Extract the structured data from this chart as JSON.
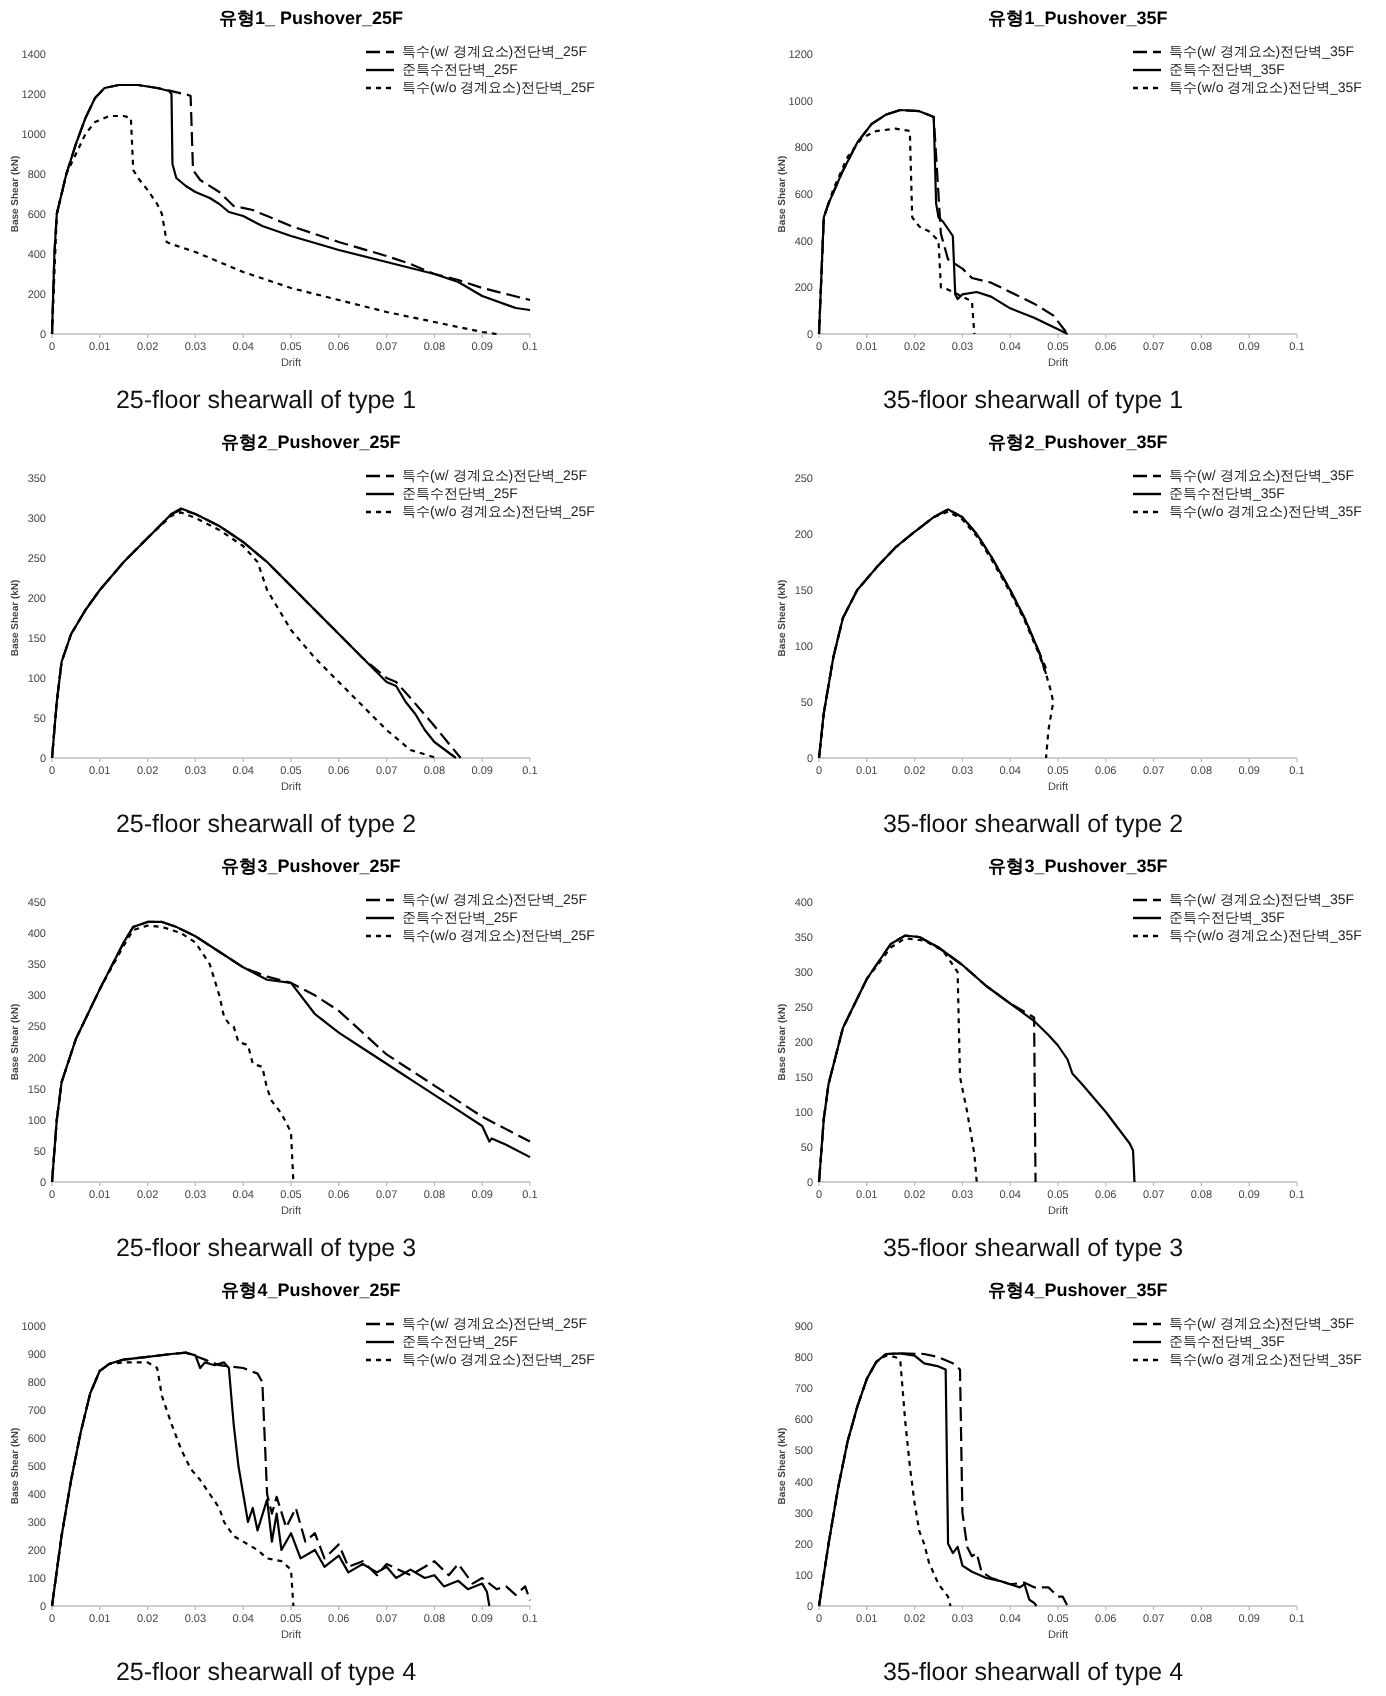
{
  "chart_data": [
    {
      "type": "line",
      "title": "유형1_ Pushover_25F",
      "xlabel": "Drift",
      "ylabel": "Base Shear (kN)",
      "annotations": [
        "25-floor shearwall of type 1"
      ],
      "legend": "top right",
      "xlim": [
        0,
        0.1
      ],
      "xticks": [
        0,
        0.01,
        0.02,
        0.03,
        0.04,
        0.05,
        0.06,
        0.07,
        0.08,
        0.09,
        0.1
      ],
      "ylim": [
        0,
        1400
      ],
      "yticks": [
        0,
        200,
        400,
        600,
        800,
        1000,
        1200,
        1400
      ],
      "series": [
        {
          "name": "특수(w/ 경계요소)전단벽_25F",
          "color": "#000000",
          "line_style": "dashed",
          "x": [
            0,
            0.0005,
            0.001,
            0.003,
            0.005,
            0.007,
            0.009,
            0.011,
            0.014,
            0.018,
            0.022,
            0.024,
            0.0285,
            0.029,
            0.0295,
            0.031,
            0.035,
            0.038,
            0.042,
            0.045,
            0.05,
            0.06,
            0.07,
            0.075,
            0.08,
            0.085,
            0.09,
            0.1
          ],
          "values": [
            0,
            400,
            600,
            800,
            950,
            1080,
            1180,
            1230,
            1245,
            1245,
            1230,
            1220,
            1195,
            1190,
            820,
            770,
            710,
            640,
            620,
            590,
            540,
            460,
            390,
            350,
            300,
            270,
            230,
            170
          ]
        },
        {
          "name": "준특수전단벽_25F",
          "color": "#000000",
          "line_style": "solid",
          "x": [
            0,
            0.0005,
            0.001,
            0.003,
            0.005,
            0.007,
            0.009,
            0.011,
            0.014,
            0.018,
            0.022,
            0.0245,
            0.025,
            0.0252,
            0.026,
            0.028,
            0.03,
            0.033,
            0.035,
            0.037,
            0.04,
            0.044,
            0.05,
            0.06,
            0.07,
            0.08,
            0.085,
            0.09,
            0.097,
            0.1
          ],
          "values": [
            0,
            400,
            600,
            800,
            950,
            1080,
            1180,
            1230,
            1245,
            1245,
            1230,
            1215,
            1200,
            850,
            780,
            740,
            710,
            680,
            650,
            610,
            590,
            540,
            490,
            420,
            360,
            300,
            260,
            190,
            130,
            120
          ]
        },
        {
          "name": "특수(w/o 경계요소)전단벽_25F",
          "color": "#000000",
          "line_style": "dotted",
          "x": [
            0,
            0.001,
            0.003,
            0.005,
            0.007,
            0.009,
            0.012,
            0.015,
            0.0165,
            0.017,
            0.018,
            0.02,
            0.022,
            0.023,
            0.024,
            0.025,
            0.03,
            0.04,
            0.05,
            0.06,
            0.07,
            0.08,
            0.09,
            0.093
          ],
          "values": [
            0,
            600,
            800,
            900,
            1000,
            1060,
            1090,
            1090,
            1080,
            820,
            780,
            720,
            650,
            600,
            460,
            450,
            410,
            310,
            230,
            170,
            110,
            60,
            10,
            0
          ]
        }
      ]
    },
    {
      "type": "line",
      "title": "유형1_Pushover_35F",
      "xlabel": "Drift",
      "ylabel": "Base Shear (kN)",
      "annotations": [
        "35-floor shearwall of type 1"
      ],
      "legend": "top right",
      "xlim": [
        0,
        0.1
      ],
      "xticks": [
        0,
        0.01,
        0.02,
        0.03,
        0.04,
        0.05,
        0.06,
        0.07,
        0.08,
        0.09,
        0.1
      ],
      "ylim": [
        0,
        1200
      ],
      "yticks": [
        0,
        200,
        400,
        600,
        800,
        1000,
        1200
      ],
      "series": [
        {
          "name": "특수(w/ 경계요소)전단벽_35F",
          "color": "#000000",
          "line_style": "dashed",
          "x": [
            0,
            0.001,
            0.002,
            0.005,
            0.008,
            0.011,
            0.014,
            0.017,
            0.021,
            0.024,
            0.0255,
            0.027,
            0.03,
            0.032,
            0.036,
            0.04,
            0.045,
            0.049,
            0.052
          ],
          "values": [
            0,
            500,
            560,
            700,
            820,
            900,
            940,
            960,
            955,
            930,
            430,
            320,
            280,
            240,
            220,
            180,
            130,
            80,
            0
          ]
        },
        {
          "name": "준특수전단벽_35F",
          "color": "#000000",
          "line_style": "solid",
          "x": [
            0,
            0.001,
            0.002,
            0.005,
            0.008,
            0.011,
            0.014,
            0.017,
            0.021,
            0.024,
            0.0245,
            0.025,
            0.026,
            0.027,
            0.028,
            0.0285,
            0.029,
            0.03,
            0.033,
            0.036,
            0.04,
            0.045,
            0.05,
            0.052
          ],
          "values": [
            0,
            500,
            560,
            700,
            820,
            900,
            940,
            960,
            955,
            930,
            560,
            500,
            480,
            450,
            420,
            170,
            150,
            170,
            180,
            160,
            110,
            70,
            20,
            0
          ]
        },
        {
          "name": "특수(w/o 경계요소)전단벽_35F",
          "color": "#000000",
          "line_style": "dotted",
          "x": [
            0,
            0.001,
            0.003,
            0.006,
            0.009,
            0.012,
            0.016,
            0.019,
            0.0195,
            0.021,
            0.023,
            0.025,
            0.0255,
            0.027,
            0.029,
            0.031,
            0.032,
            0.0325
          ],
          "values": [
            0,
            500,
            620,
            760,
            840,
            870,
            880,
            870,
            500,
            460,
            440,
            400,
            200,
            190,
            170,
            150,
            140,
            0
          ]
        }
      ]
    },
    {
      "type": "line",
      "title": "유형2_Pushover_25F",
      "xlabel": "Drift",
      "ylabel": "Base Shear (kN)",
      "annotations": [
        "25-floor shearwall of type 2"
      ],
      "legend": "top right",
      "xlim": [
        0,
        0.1
      ],
      "xticks": [
        0,
        0.01,
        0.02,
        0.03,
        0.04,
        0.05,
        0.06,
        0.07,
        0.08,
        0.09,
        0.1
      ],
      "ylim": [
        0,
        350
      ],
      "yticks": [
        0,
        50,
        100,
        150,
        200,
        250,
        300,
        350
      ],
      "series": [
        {
          "name": "특수(w/ 경계요소)전단벽_25F",
          "color": "#000000",
          "line_style": "dashed",
          "x": [
            0,
            0.001,
            0.002,
            0.004,
            0.007,
            0.01,
            0.015,
            0.02,
            0.025,
            0.027,
            0.03,
            0.035,
            0.04,
            0.045,
            0.05,
            0.055,
            0.06,
            0.065,
            0.07,
            0.072,
            0.075,
            0.08,
            0.0855
          ],
          "values": [
            0,
            70,
            120,
            155,
            185,
            210,
            245,
            275,
            305,
            310,
            305,
            290,
            270,
            245,
            215,
            185,
            155,
            125,
            100,
            95,
            75,
            40,
            0
          ]
        },
        {
          "name": "준특수전단벽_25F",
          "color": "#000000",
          "line_style": "solid",
          "x": [
            0,
            0.001,
            0.002,
            0.004,
            0.007,
            0.01,
            0.015,
            0.02,
            0.025,
            0.027,
            0.03,
            0.035,
            0.04,
            0.045,
            0.05,
            0.055,
            0.06,
            0.065,
            0.07,
            0.072,
            0.074,
            0.076,
            0.078,
            0.08,
            0.0845
          ],
          "values": [
            0,
            70,
            120,
            155,
            185,
            210,
            245,
            275,
            305,
            312,
            305,
            290,
            270,
            245,
            215,
            185,
            155,
            125,
            95,
            90,
            70,
            55,
            35,
            20,
            0
          ]
        },
        {
          "name": "특수(w/o 경계요소)전단벽_25F",
          "color": "#000000",
          "line_style": "dotted",
          "x": [
            0,
            0.001,
            0.002,
            0.004,
            0.007,
            0.01,
            0.015,
            0.02,
            0.025,
            0.027,
            0.03,
            0.035,
            0.04,
            0.043,
            0.045,
            0.047,
            0.05,
            0.055,
            0.06,
            0.065,
            0.07,
            0.075,
            0.0805
          ],
          "values": [
            0,
            70,
            120,
            155,
            185,
            210,
            245,
            275,
            303,
            307,
            300,
            285,
            265,
            245,
            210,
            190,
            160,
            125,
            95,
            65,
            35,
            10,
            0
          ]
        }
      ]
    },
    {
      "type": "line",
      "title": "유형2_Pushover_35F",
      "xlabel": "Drift",
      "ylabel": "Base Shear (kN)",
      "annotations": [
        "35-floor shearwall of type 2"
      ],
      "legend": "top right",
      "xlim": [
        0,
        0.1
      ],
      "xticks": [
        0,
        0.01,
        0.02,
        0.03,
        0.04,
        0.05,
        0.06,
        0.07,
        0.08,
        0.09,
        0.1
      ],
      "ylim": [
        0,
        250
      ],
      "yticks": [
        0,
        50,
        100,
        150,
        200,
        250
      ],
      "series": [
        {
          "name": "특수(w/ 경계요소)전단벽_35F",
          "color": "#000000",
          "line_style": "dashed",
          "x": [
            0,
            0.001,
            0.003,
            0.005,
            0.008,
            0.012,
            0.016,
            0.02,
            0.024,
            0.027,
            0.03,
            0.033,
            0.036,
            0.04,
            0.043,
            0.046,
            0.0475
          ],
          "values": [
            0,
            40,
            90,
            125,
            150,
            170,
            188,
            202,
            215,
            222,
            215,
            200,
            180,
            150,
            125,
            95,
            80
          ]
        },
        {
          "name": "준특수전단벽_35F",
          "color": "#000000",
          "line_style": "solid",
          "x": [
            0,
            0.001,
            0.003,
            0.005,
            0.008,
            0.012,
            0.016,
            0.02,
            0.024,
            0.027,
            0.03,
            0.033,
            0.036,
            0.04,
            0.043,
            0.046,
            0.0475
          ],
          "values": [
            0,
            40,
            90,
            125,
            150,
            170,
            188,
            202,
            215,
            222,
            215,
            200,
            180,
            150,
            125,
            95,
            75
          ]
        },
        {
          "name": "특수(w/o 경계요소)전단벽_35F",
          "color": "#000000",
          "line_style": "dotted",
          "x": [
            0,
            0.001,
            0.003,
            0.005,
            0.008,
            0.012,
            0.016,
            0.02,
            0.024,
            0.027,
            0.03,
            0.033,
            0.036,
            0.04,
            0.043,
            0.046,
            0.0475,
            0.0485,
            0.049,
            0.048,
            0.0475
          ],
          "values": [
            0,
            40,
            90,
            125,
            150,
            170,
            188,
            202,
            215,
            220,
            213,
            198,
            178,
            148,
            123,
            93,
            75,
            60,
            50,
            25,
            0
          ]
        }
      ]
    },
    {
      "type": "line",
      "title": "유형3_Pushover_25F",
      "xlabel": "Drift",
      "ylabel": "Base Shear (kN)",
      "annotations": [
        "25-floor shearwall of type 3"
      ],
      "legend": "top right",
      "xlim": [
        0,
        0.1
      ],
      "xticks": [
        0,
        0.01,
        0.02,
        0.03,
        0.04,
        0.05,
        0.06,
        0.07,
        0.08,
        0.09,
        0.1
      ],
      "ylim": [
        0,
        450
      ],
      "yticks": [
        0,
        50,
        100,
        150,
        200,
        250,
        300,
        350,
        400,
        450
      ],
      "series": [
        {
          "name": "특수(w/ 경계요소)전단벽_25F",
          "color": "#000000",
          "line_style": "dashed",
          "x": [
            0,
            0.001,
            0.002,
            0.005,
            0.01,
            0.015,
            0.017,
            0.02,
            0.023,
            0.026,
            0.03,
            0.035,
            0.04,
            0.045,
            0.05,
            0.055,
            0.06,
            0.065,
            0.07,
            0.075,
            0.08,
            0.085,
            0.09,
            0.095,
            0.1
          ],
          "values": [
            0,
            100,
            160,
            230,
            310,
            385,
            410,
            418,
            418,
            410,
            395,
            370,
            345,
            330,
            320,
            300,
            275,
            240,
            205,
            180,
            155,
            130,
            105,
            85,
            65
          ]
        },
        {
          "name": "준특수전단벽_25F",
          "color": "#000000",
          "line_style": "solid",
          "x": [
            0,
            0.001,
            0.002,
            0.005,
            0.01,
            0.015,
            0.017,
            0.02,
            0.023,
            0.026,
            0.03,
            0.035,
            0.04,
            0.045,
            0.05,
            0.055,
            0.06,
            0.065,
            0.07,
            0.074,
            0.075,
            0.08,
            0.085,
            0.09,
            0.0915,
            0.092,
            0.095,
            0.1
          ],
          "values": [
            0,
            100,
            160,
            230,
            310,
            385,
            410,
            418,
            418,
            410,
            395,
            370,
            345,
            325,
            320,
            270,
            240,
            215,
            190,
            170,
            165,
            140,
            115,
            90,
            65,
            70,
            60,
            40
          ]
        },
        {
          "name": "특수(w/o 경계요소)전단벽_25F",
          "color": "#000000",
          "line_style": "dotted",
          "x": [
            0,
            0.001,
            0.002,
            0.005,
            0.01,
            0.015,
            0.017,
            0.02,
            0.023,
            0.027,
            0.03,
            0.033,
            0.035,
            0.036,
            0.037,
            0.038,
            0.039,
            0.041,
            0.042,
            0.044,
            0.045,
            0.046,
            0.048,
            0.049,
            0.05,
            0.0505
          ],
          "values": [
            0,
            100,
            160,
            230,
            310,
            380,
            405,
            412,
            410,
            400,
            385,
            350,
            300,
            265,
            255,
            250,
            225,
            220,
            190,
            185,
            150,
            130,
            110,
            95,
            80,
            0
          ]
        }
      ]
    },
    {
      "type": "line",
      "title": "유형3_Pushover_35F",
      "xlabel": "Drift",
      "ylabel": "Base Shear (kN)",
      "annotations": [
        "35-floor shearwall of type 3"
      ],
      "legend": "top right",
      "xlim": [
        0,
        0.1
      ],
      "xticks": [
        0,
        0.01,
        0.02,
        0.03,
        0.04,
        0.05,
        0.06,
        0.07,
        0.08,
        0.09,
        0.1
      ],
      "ylim": [
        0,
        400
      ],
      "yticks": [
        0,
        50,
        100,
        150,
        200,
        250,
        300,
        350,
        400
      ],
      "series": [
        {
          "name": "특수(w/ 경계요소)전단벽_35F",
          "color": "#000000",
          "line_style": "dashed",
          "x": [
            0,
            0.001,
            0.002,
            0.005,
            0.01,
            0.015,
            0.018,
            0.021,
            0.025,
            0.03,
            0.035,
            0.04,
            0.045,
            0.0453
          ],
          "values": [
            0,
            90,
            140,
            220,
            290,
            340,
            352,
            350,
            335,
            310,
            280,
            255,
            235,
            0
          ]
        },
        {
          "name": "준특수전단벽_35F",
          "color": "#000000",
          "line_style": "solid",
          "x": [
            0,
            0.001,
            0.002,
            0.005,
            0.01,
            0.015,
            0.018,
            0.021,
            0.025,
            0.03,
            0.035,
            0.04,
            0.045,
            0.048,
            0.05,
            0.052,
            0.053,
            0.055,
            0.06,
            0.065,
            0.0657,
            0.066
          ],
          "values": [
            0,
            90,
            140,
            220,
            290,
            340,
            352,
            350,
            335,
            310,
            280,
            255,
            230,
            210,
            195,
            175,
            155,
            140,
            100,
            55,
            45,
            0
          ]
        },
        {
          "name": "특수(w/o 경계요소)전단벽_35F",
          "color": "#000000",
          "line_style": "dotted",
          "x": [
            0,
            0.001,
            0.002,
            0.005,
            0.01,
            0.015,
            0.018,
            0.022,
            0.026,
            0.028,
            0.029,
            0.0295,
            0.031,
            0.032,
            0.0325,
            0.033
          ],
          "values": [
            0,
            90,
            140,
            220,
            290,
            335,
            348,
            345,
            330,
            310,
            300,
            150,
            100,
            60,
            40,
            0
          ]
        }
      ]
    },
    {
      "type": "line",
      "title": "유형4_Pushover_25F",
      "xlabel": "Drift",
      "ylabel": "Base Shear (kN)",
      "annotations": [
        "25-floor shearwall of type 4"
      ],
      "legend": "top right",
      "xlim": [
        0,
        0.1
      ],
      "xticks": [
        0,
        0.01,
        0.02,
        0.03,
        0.04,
        0.05,
        0.06,
        0.07,
        0.08,
        0.09,
        0.1
      ],
      "ylim": [
        0,
        1000
      ],
      "yticks": [
        0,
        100,
        200,
        300,
        400,
        500,
        600,
        700,
        800,
        900,
        1000
      ],
      "series": [
        {
          "name": "특수(w/ 경계요소)전단벽_25F",
          "color": "#000000",
          "line_style": "dashed",
          "x": [
            0,
            0.002,
            0.004,
            0.006,
            0.008,
            0.01,
            0.012,
            0.015,
            0.02,
            0.025,
            0.028,
            0.032,
            0.035,
            0.04,
            0.043,
            0.044,
            0.045,
            0.046,
            0.047,
            0.049,
            0.051,
            0.053,
            0.055,
            0.057,
            0.06,
            0.062,
            0.065,
            0.068,
            0.07,
            0.075,
            0.08,
            0.083,
            0.085,
            0.088,
            0.09,
            0.093,
            0.095,
            0.097,
            0.099,
            0.1
          ],
          "values": [
            0,
            250,
            450,
            620,
            760,
            840,
            865,
            880,
            890,
            900,
            905,
            880,
            860,
            850,
            830,
            800,
            400,
            330,
            390,
            280,
            350,
            230,
            260,
            170,
            220,
            140,
            160,
            110,
            150,
            110,
            160,
            110,
            150,
            80,
            100,
            60,
            70,
            40,
            70,
            20
          ]
        },
        {
          "name": "준특수전단벽_25F",
          "color": "#000000",
          "line_style": "solid",
          "x": [
            0,
            0.002,
            0.004,
            0.006,
            0.008,
            0.01,
            0.012,
            0.015,
            0.02,
            0.025,
            0.028,
            0.03,
            0.031,
            0.032,
            0.034,
            0.036,
            0.037,
            0.038,
            0.039,
            0.04,
            0.041,
            0.042,
            0.043,
            0.045,
            0.046,
            0.047,
            0.048,
            0.05,
            0.052,
            0.055,
            0.057,
            0.06,
            0.062,
            0.065,
            0.068,
            0.07,
            0.072,
            0.075,
            0.078,
            0.08,
            0.082,
            0.085,
            0.087,
            0.09,
            0.091,
            0.0915
          ],
          "values": [
            0,
            250,
            450,
            620,
            760,
            840,
            865,
            880,
            890,
            900,
            905,
            895,
            850,
            870,
            860,
            870,
            850,
            650,
            500,
            400,
            300,
            350,
            270,
            380,
            230,
            330,
            200,
            260,
            170,
            200,
            140,
            180,
            120,
            150,
            120,
            140,
            100,
            130,
            100,
            110,
            70,
            90,
            60,
            80,
            50,
            0
          ]
        },
        {
          "name": "특수(w/o 경계요소)전단벽_25F",
          "color": "#000000",
          "line_style": "dotted",
          "x": [
            0,
            0.002,
            0.004,
            0.006,
            0.008,
            0.01,
            0.012,
            0.015,
            0.02,
            0.022,
            0.023,
            0.025,
            0.027,
            0.029,
            0.031,
            0.033,
            0.035,
            0.036,
            0.038,
            0.04,
            0.043,
            0.045,
            0.048,
            0.05,
            0.0505
          ],
          "values": [
            0,
            250,
            450,
            620,
            760,
            840,
            865,
            870,
            870,
            850,
            750,
            650,
            560,
            490,
            450,
            400,
            350,
            300,
            250,
            230,
            200,
            170,
            160,
            130,
            0
          ]
        }
      ]
    },
    {
      "type": "line",
      "title": "유형4_Pushover_35F",
      "xlabel": "Drift",
      "ylabel": "Base Shear (kN)",
      "annotations": [
        "35-floor shearwall of type 4"
      ],
      "legend": "top right",
      "xlim": [
        0,
        0.1
      ],
      "xticks": [
        0,
        0.01,
        0.02,
        0.03,
        0.04,
        0.05,
        0.06,
        0.07,
        0.08,
        0.09,
        0.1
      ],
      "ylim": [
        0,
        900
      ],
      "yticks": [
        0,
        100,
        200,
        300,
        400,
        500,
        600,
        700,
        800,
        900
      ],
      "series": [
        {
          "name": "특수(w/ 경계요소)전단벽_35F",
          "color": "#000000",
          "line_style": "dashed",
          "x": [
            0,
            0.002,
            0.004,
            0.006,
            0.008,
            0.01,
            0.012,
            0.014,
            0.017,
            0.022,
            0.025,
            0.028,
            0.0295,
            0.03,
            0.031,
            0.032,
            0.033,
            0.034,
            0.036,
            0.04,
            0.043,
            0.045,
            0.048,
            0.05,
            0.051,
            0.052
          ],
          "values": [
            0,
            200,
            380,
            530,
            640,
            730,
            785,
            810,
            812,
            810,
            800,
            780,
            760,
            300,
            190,
            160,
            170,
            110,
            90,
            70,
            75,
            60,
            60,
            30,
            30,
            0
          ]
        },
        {
          "name": "준특수전단벽_35F",
          "color": "#000000",
          "line_style": "solid",
          "x": [
            0,
            0.002,
            0.004,
            0.006,
            0.008,
            0.01,
            0.012,
            0.014,
            0.017,
            0.02,
            0.022,
            0.025,
            0.0265,
            0.027,
            0.028,
            0.029,
            0.03,
            0.032,
            0.035,
            0.038,
            0.04,
            0.042,
            0.043,
            0.044,
            0.045,
            0.0455
          ],
          "values": [
            0,
            200,
            380,
            530,
            640,
            730,
            785,
            810,
            812,
            805,
            780,
            770,
            760,
            200,
            170,
            190,
            130,
            110,
            90,
            80,
            70,
            60,
            70,
            20,
            10,
            0
          ]
        },
        {
          "name": "특수(w/o 경계요소)전단벽_35F",
          "color": "#000000",
          "line_style": "dotted",
          "x": [
            0,
            0.002,
            0.004,
            0.006,
            0.008,
            0.01,
            0.012,
            0.014,
            0.016,
            0.017,
            0.018,
            0.019,
            0.02,
            0.021,
            0.022,
            0.023,
            0.025,
            0.027,
            0.0275
          ],
          "values": [
            0,
            200,
            380,
            530,
            640,
            730,
            785,
            805,
            800,
            790,
            600,
            450,
            330,
            240,
            200,
            140,
            70,
            30,
            0
          ]
        }
      ]
    }
  ]
}
